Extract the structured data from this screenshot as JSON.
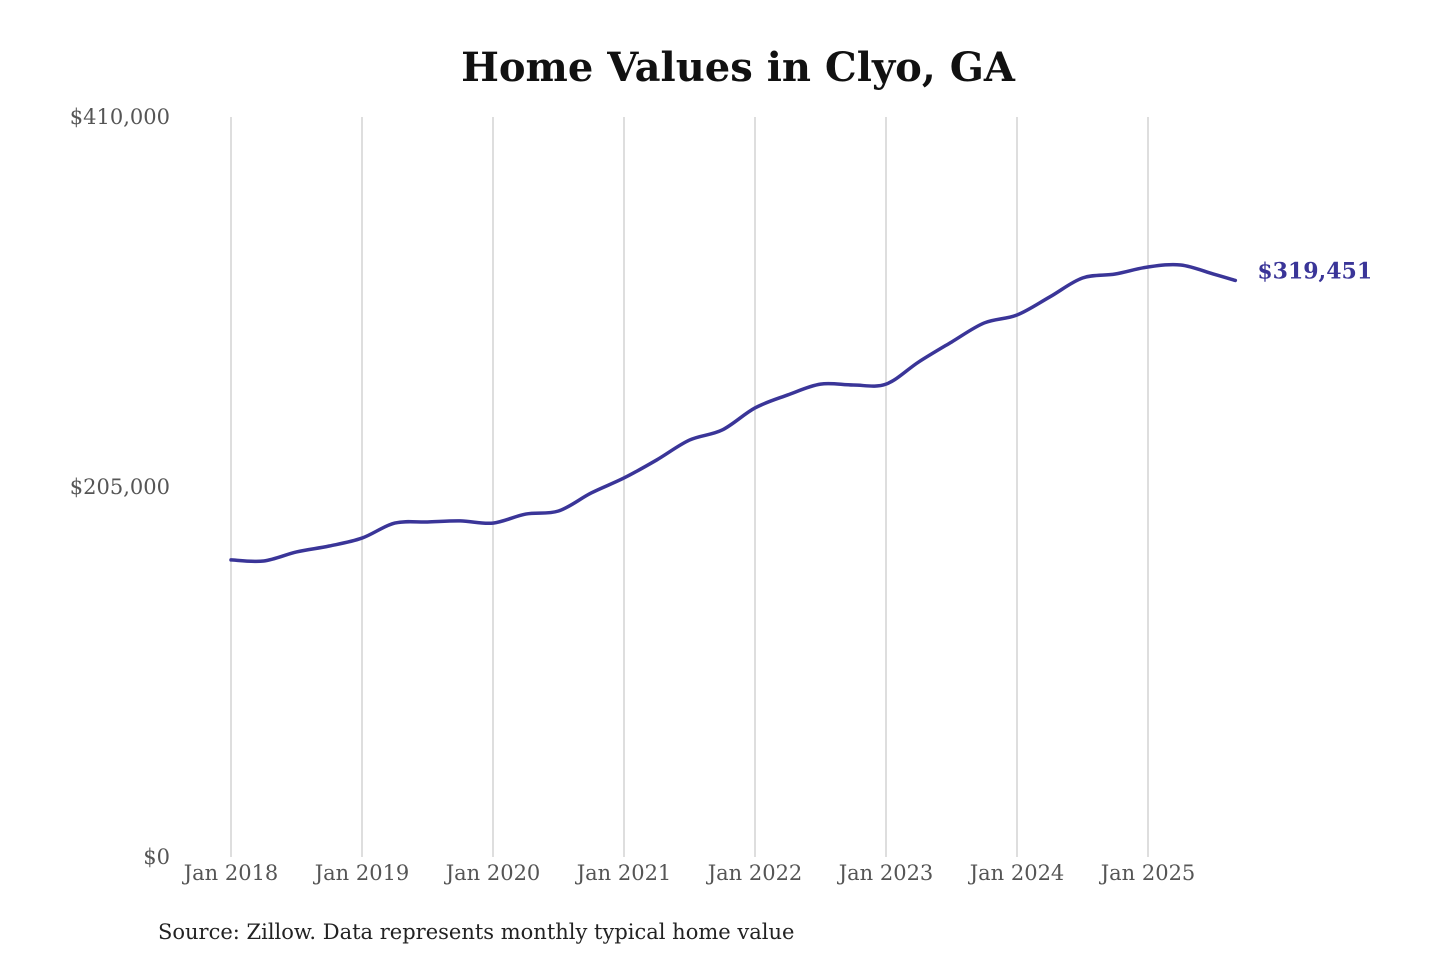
{
  "chart_data": {
    "type": "line",
    "title": "Home Values in Clyo, GA",
    "xlabel": "",
    "ylabel": "",
    "ylim": [
      0,
      410000
    ],
    "y_ticks": [
      "$0",
      "$205,000",
      "$410,000"
    ],
    "y_tick_values": [
      0,
      205000,
      410000
    ],
    "x_ticks": [
      "Jan 2018",
      "Jan 2019",
      "Jan 2020",
      "Jan 2021",
      "Jan 2022",
      "Jan 2023",
      "Jan 2024",
      "Jan 2025"
    ],
    "grid": "vertical",
    "line_color": "#3a3598",
    "end_label": "$319,451",
    "x": [
      "2018-01",
      "2018-04",
      "2018-07",
      "2018-10",
      "2019-01",
      "2019-04",
      "2019-07",
      "2019-10",
      "2020-01",
      "2020-04",
      "2020-07",
      "2020-10",
      "2021-01",
      "2021-04",
      "2021-07",
      "2021-10",
      "2022-01",
      "2022-04",
      "2022-07",
      "2022-10",
      "2023-01",
      "2023-04",
      "2023-07",
      "2023-10",
      "2024-01",
      "2024-04",
      "2024-07",
      "2024-10",
      "2025-01",
      "2025-04",
      "2025-07",
      "2025-09"
    ],
    "values": [
      164600,
      164000,
      169000,
      172300,
      176700,
      185000,
      185600,
      186200,
      185000,
      190000,
      191700,
      201700,
      210000,
      220000,
      231000,
      236600,
      248800,
      256000,
      262000,
      261500,
      262000,
      274300,
      285300,
      295900,
      300300,
      310300,
      320800,
      323000,
      326900,
      328000,
      323000,
      319451
    ]
  },
  "source": "Source: Zillow. Data represents monthly typical home value"
}
